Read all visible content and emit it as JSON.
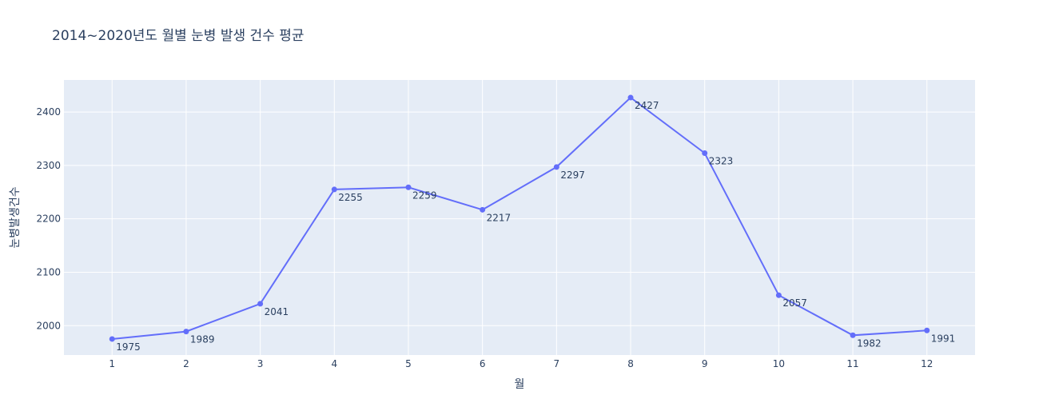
{
  "chart_data": {
    "type": "line",
    "title": "2014~2020년도 월별 눈병 발생 건수 평균",
    "xlabel": "월",
    "ylabel": "눈병발생건수",
    "x": [
      1,
      2,
      3,
      4,
      5,
      6,
      7,
      8,
      9,
      10,
      11,
      12
    ],
    "series": [
      {
        "name": "",
        "values": [
          1975,
          1989,
          2041,
          2255,
          2259,
          2217,
          2297,
          2427,
          2323,
          2057,
          1982,
          1991
        ],
        "labels": [
          "1975",
          "1989",
          "2041",
          "2255",
          "2259",
          "2217",
          "2297",
          "2427",
          "2323",
          "2057",
          "1982",
          "1991"
        ]
      }
    ],
    "xticks": [
      "1",
      "2",
      "3",
      "4",
      "5",
      "6",
      "7",
      "8",
      "9",
      "10",
      "11",
      "12"
    ],
    "yticks": [
      2000,
      2100,
      2200,
      2300,
      2400
    ],
    "ytick_labels": [
      "2000",
      "2100",
      "2200",
      "2300",
      "2400"
    ],
    "xlim": [
      0.35,
      12.65
    ],
    "ylim": [
      1945,
      2460
    ],
    "grid": true,
    "colors": {
      "line": "#636efa",
      "plot_bg": "#e5ecf6",
      "grid": "#ffffff",
      "text": "#2a3f5f"
    }
  }
}
